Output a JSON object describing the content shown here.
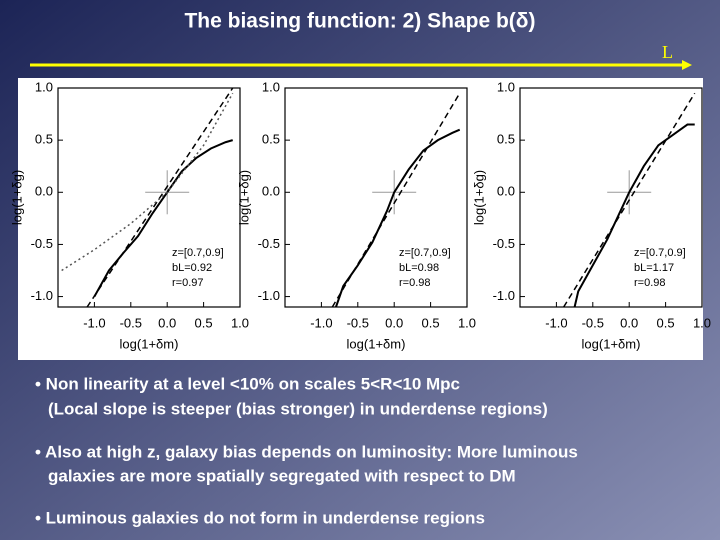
{
  "title": "The biasing function: 2) Shape b(δ)",
  "arrow_label": "L",
  "chart_data": [
    {
      "type": "line",
      "x_label": "log(1+δm)",
      "y_label": "log(1+δg)",
      "xlim": [
        -1.5,
        1.0
      ],
      "ylim": [
        -1.1,
        1.0
      ],
      "xticks": [
        {
          "value": -1,
          "label": "-1.0"
        },
        -0.5,
        {
          "value": 0,
          "label": "0.0"
        },
        0.5,
        {
          "value": 1,
          "label": "1.0"
        }
      ],
      "yticks": [
        {
          "value": -1,
          "label": "-1.0"
        },
        -0.5,
        {
          "value": 0,
          "label": "0.0"
        },
        0.5,
        {
          "value": 1,
          "label": "1.0"
        }
      ],
      "annotations": [
        "z=[0.7,0.9]",
        "bL=0.92",
        "r=0.97"
      ],
      "series": [
        {
          "style": "solid",
          "color": "#000000",
          "x": [
            -1.0,
            -0.8,
            -0.6,
            -0.4,
            -0.2,
            0,
            0.2,
            0.4,
            0.6,
            0.8,
            0.9
          ],
          "values": [
            -1.0,
            -0.75,
            -0.58,
            -0.42,
            -0.2,
            0.0,
            0.2,
            0.33,
            0.42,
            0.48,
            0.5
          ]
        },
        {
          "style": "dashed",
          "color": "#000000",
          "x": [
            -1.1,
            0.9
          ],
          "values": [
            -1.1,
            1.0
          ]
        },
        {
          "style": "dotted",
          "color": "#555555",
          "x": [
            -1.45,
            -1.0,
            -0.5,
            0,
            0.5,
            0.9
          ],
          "values": [
            -0.75,
            -0.55,
            -0.3,
            0.0,
            0.45,
            0.95
          ]
        }
      ]
    },
    {
      "type": "line",
      "x_label": "log(1+δm)",
      "y_label": "log(1+δg)",
      "xlim": [
        -1.5,
        1.0
      ],
      "ylim": [
        -1.1,
        1.0
      ],
      "xticks": [
        {
          "value": -1,
          "label": "-1.0"
        },
        -0.5,
        {
          "value": 0,
          "label": "0.0"
        },
        0.5,
        {
          "value": 1,
          "label": "1.0"
        }
      ],
      "yticks": [
        {
          "value": -1,
          "label": "-1.0"
        },
        -0.5,
        {
          "value": 0,
          "label": "0.0"
        },
        0.5,
        {
          "value": 1,
          "label": "1.0"
        }
      ],
      "annotations": [
        "z=[0.7,0.9]",
        "bL=0.98",
        "r=0.98"
      ],
      "series": [
        {
          "style": "solid",
          "color": "#000000",
          "x": [
            -0.8,
            -0.7,
            -0.5,
            -0.3,
            -0.1,
            0,
            0.2,
            0.4,
            0.6,
            0.8,
            0.9
          ],
          "values": [
            -1.1,
            -0.9,
            -0.7,
            -0.48,
            -0.18,
            0.0,
            0.22,
            0.4,
            0.5,
            0.57,
            0.6
          ]
        },
        {
          "style": "dashed",
          "color": "#000000",
          "x": [
            -0.85,
            0.9
          ],
          "values": [
            -1.1,
            0.95
          ]
        }
      ]
    },
    {
      "type": "line",
      "x_label": "log(1+δm)",
      "y_label": "log(1+δg)",
      "xlim": [
        -1.5,
        1.0
      ],
      "ylim": [
        -1.1,
        1.0
      ],
      "xticks": [
        {
          "value": -1,
          "label": "-1.0"
        },
        -0.5,
        {
          "value": 0,
          "label": "0.0"
        },
        0.5,
        {
          "value": 1,
          "label": "1.0"
        }
      ],
      "yticks": [
        {
          "value": -1,
          "label": "-1.0"
        },
        -0.5,
        {
          "value": 0,
          "label": "0.0"
        },
        0.5,
        {
          "value": 1,
          "label": "1.0"
        }
      ],
      "annotations": [
        "z=[0.7,0.9]",
        "bL=1.17",
        "r=0.98"
      ],
      "series": [
        {
          "style": "solid",
          "color": "#000000",
          "x": [
            -0.75,
            -0.7,
            -0.5,
            -0.3,
            -0.1,
            0,
            0.2,
            0.4,
            0.6,
            0.8,
            0.9
          ],
          "values": [
            -1.1,
            -0.95,
            -0.7,
            -0.45,
            -0.15,
            0.0,
            0.25,
            0.45,
            0.55,
            0.65,
            0.65
          ]
        },
        {
          "style": "dashed",
          "color": "#000000",
          "x": [
            -0.9,
            0.9
          ],
          "values": [
            -1.1,
            0.95
          ]
        }
      ]
    }
  ],
  "bullets": [
    [
      "• Non linearity at a level <10% on scales 5<R<10 Mpc",
      "(Local slope is steeper (bias stronger) in underdense regions)"
    ],
    [
      "• Also at high z, galaxy bias depends on luminosity: More luminous",
      "galaxies are more spatially  segregated with respect to DM"
    ],
    [
      "• Luminous galaxies  do not form in underdense regions"
    ]
  ]
}
